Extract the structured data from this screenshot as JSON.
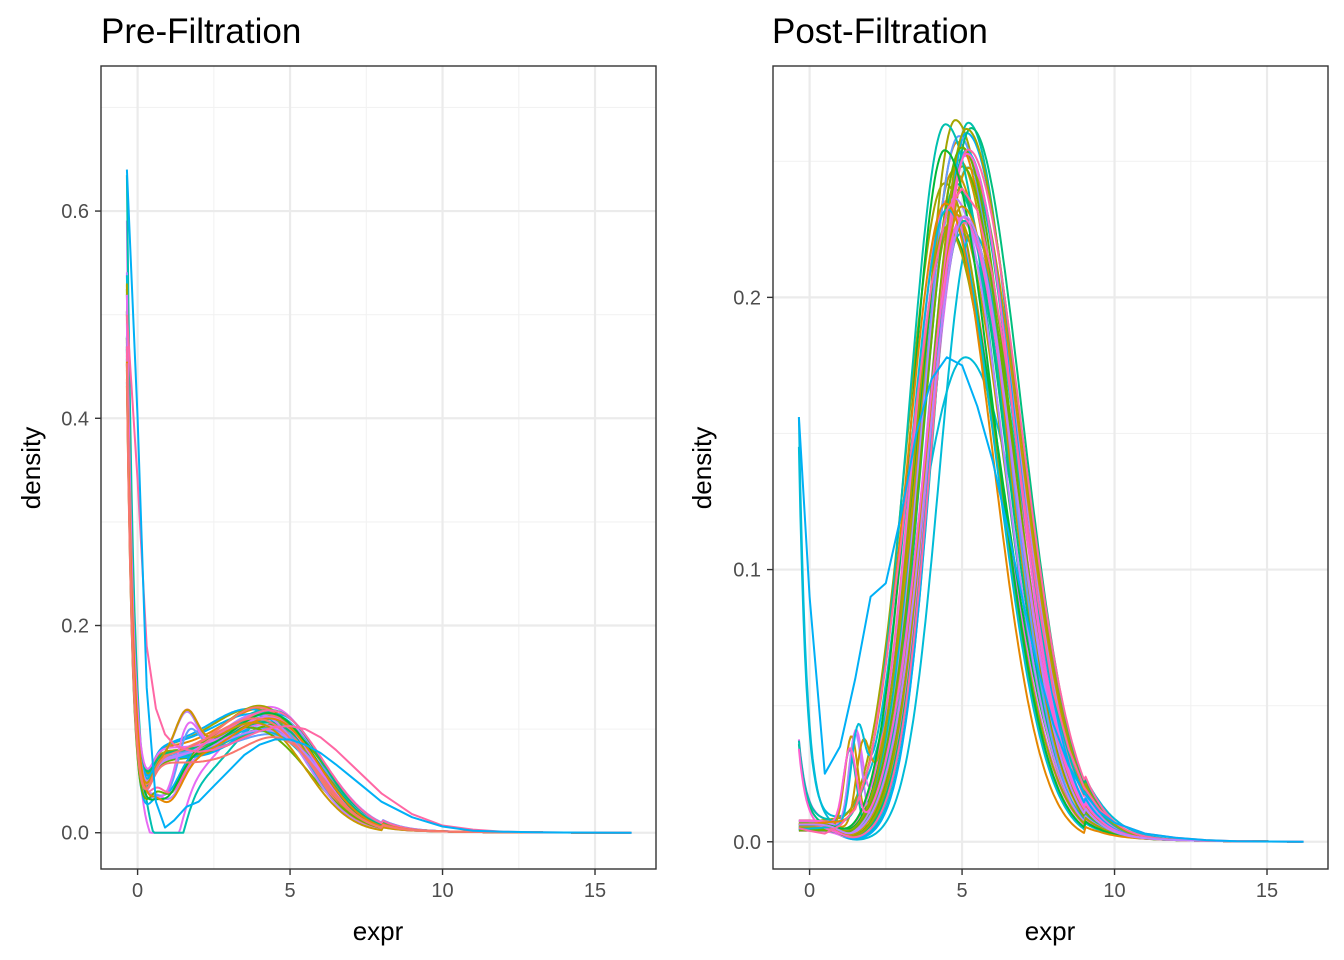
{
  "chart_data": [
    {
      "type": "line",
      "title": "Pre-Filtration",
      "xlabel": "expr",
      "ylabel": "density",
      "xlim": [
        -1.2,
        17
      ],
      "ylim": [
        -0.035,
        0.74
      ],
      "xticks": [
        0,
        5,
        10,
        15
      ],
      "yticks": [
        0.0,
        0.2,
        0.4,
        0.6
      ],
      "xtick_labels": [
        "0",
        "5",
        "10",
        "15"
      ],
      "ytick_labels": [
        "0.0",
        "0.2",
        "0.4",
        "0.6"
      ],
      "grid": true,
      "legend": "none",
      "series_count": 40,
      "x_range_of_curves": [
        -0.35,
        16.2
      ],
      "representative_series": [
        {
          "x": [
            -0.35,
            0,
            0.3,
            0.6,
            0.9,
            1.2,
            1.6,
            2,
            2.5,
            3,
            3.5,
            4,
            4.5,
            5,
            5.5,
            6,
            6.5,
            7,
            7.5,
            8,
            9,
            10,
            11,
            12,
            13,
            14,
            15,
            16.2
          ],
          "y": [
            0.5,
            0.34,
            0.18,
            0.12,
            0.095,
            0.085,
            0.08,
            0.078,
            0.08,
            0.085,
            0.092,
            0.098,
            0.102,
            0.103,
            0.1,
            0.092,
            0.08,
            0.066,
            0.052,
            0.038,
            0.018,
            0.007,
            0.003,
            0.001,
            0.0005,
            0.0002,
            0.0001,
            0
          ]
        },
        {
          "x": [
            -0.35,
            0,
            0.3,
            0.6,
            0.9,
            1.2,
            1.6,
            2,
            2.5,
            3,
            3.5,
            4,
            4.5,
            5,
            5.5,
            6,
            6.5,
            7,
            7.5,
            8,
            9,
            10,
            11,
            12,
            13,
            14,
            15,
            16.2
          ],
          "y": [
            0.64,
            0.4,
            0.14,
            0.03,
            0.005,
            0.012,
            0.025,
            0.03,
            0.045,
            0.06,
            0.075,
            0.085,
            0.09,
            0.09,
            0.085,
            0.077,
            0.066,
            0.054,
            0.042,
            0.03,
            0.015,
            0.006,
            0.002,
            0.001,
            0.0004,
            0.0002,
            0.0001,
            0
          ]
        }
      ]
    },
    {
      "type": "line",
      "title": "Post-Filtration",
      "xlabel": "expr",
      "ylabel": "density",
      "xlim": [
        -1.2,
        17
      ],
      "ylim": [
        -0.01,
        0.285
      ],
      "xticks": [
        0,
        5,
        10,
        15
      ],
      "yticks": [
        0.0,
        0.1,
        0.2
      ],
      "xtick_labels": [
        "0",
        "5",
        "10",
        "15"
      ],
      "ytick_labels": [
        "0.0",
        "0.1",
        "0.2"
      ],
      "grid": true,
      "legend": "none",
      "series_count": 40,
      "x_range_of_curves": [
        -0.35,
        16.2
      ],
      "representative_series": [
        {
          "x": [
            -0.35,
            0,
            0.5,
            1,
            1.5,
            2,
            2.5,
            3,
            3.5,
            4,
            4.5,
            5,
            5.5,
            6,
            6.5,
            7,
            7.5,
            8,
            8.5,
            9,
            9.5,
            10,
            11,
            12,
            13,
            14,
            15,
            16.2
          ],
          "y": [
            0.005,
            0.004,
            0.003,
            0.006,
            0.012,
            0.03,
            0.065,
            0.11,
            0.16,
            0.205,
            0.232,
            0.24,
            0.232,
            0.208,
            0.172,
            0.128,
            0.088,
            0.055,
            0.034,
            0.02,
            0.012,
            0.007,
            0.003,
            0.0015,
            0.0006,
            0.0002,
            0.0001,
            0
          ]
        },
        {
          "x": [
            -0.35,
            0,
            0.5,
            1,
            1.5,
            2,
            2.5,
            3,
            3.5,
            4,
            4.5,
            5,
            5.5,
            6,
            6.5,
            7,
            7.5,
            8,
            8.5,
            9,
            9.5,
            10,
            11,
            12,
            13,
            14,
            15,
            16.2
          ],
          "y": [
            0.156,
            0.09,
            0.025,
            0.035,
            0.06,
            0.09,
            0.095,
            0.12,
            0.15,
            0.17,
            0.178,
            0.175,
            0.16,
            0.14,
            0.115,
            0.088,
            0.063,
            0.043,
            0.028,
            0.018,
            0.011,
            0.007,
            0.003,
            0.0015,
            0.0006,
            0.0002,
            0.0001,
            0
          ]
        }
      ]
    }
  ],
  "colors": {
    "palette": [
      "#F8766D",
      "#E58700",
      "#C99800",
      "#A3A500",
      "#6BB100",
      "#00BA38",
      "#00BF7D",
      "#00C0AF",
      "#00BCD8",
      "#00B0F6",
      "#619CFF",
      "#B983FF",
      "#E76BF3",
      "#FD61D1",
      "#FF67A4"
    ],
    "axis_text": "#4d4d4d",
    "grid": "#ebebeb",
    "panel_border": "#333333"
  }
}
